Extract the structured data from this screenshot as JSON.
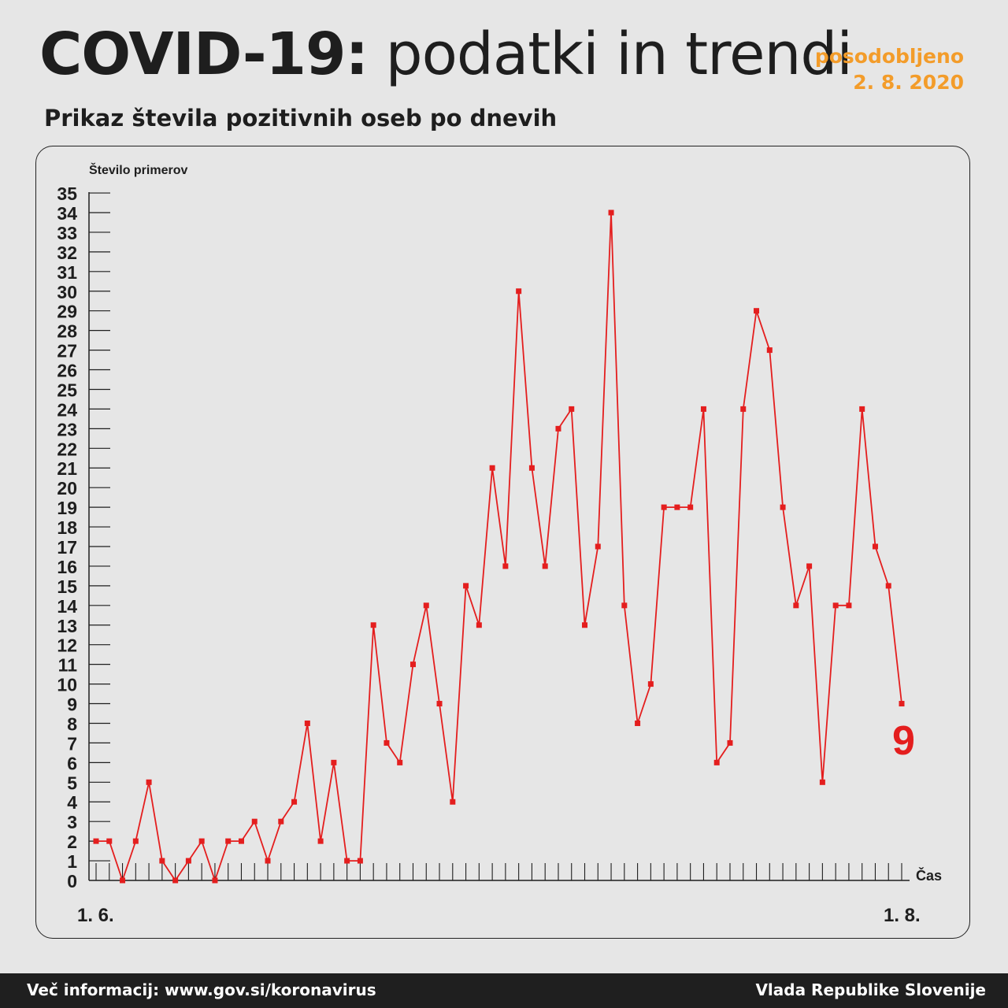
{
  "header": {
    "title_bold": "COVID-19:",
    "title_light": "podatki in trendi",
    "updated_label": "posodobljeno",
    "updated_date": "2. 8. 2020",
    "subtitle": "Prikaz števila pozitivnih oseb po dnevih"
  },
  "colors": {
    "line": "#e41e1e",
    "accent": "#f39c2a",
    "footer_bg": "#1f1f1f",
    "background": "#e6e6e6"
  },
  "chart_data": {
    "type": "line",
    "ylabel": "Število primerov",
    "xlabel": "Čas",
    "x_start_label": "1. 6.",
    "x_end_label": "1. 8.",
    "ylim": [
      0,
      35
    ],
    "yticks": [
      "0",
      "1",
      "2",
      "3",
      "4",
      "5",
      "6",
      "7",
      "8",
      "9",
      "10",
      "11",
      "12",
      "13",
      "14",
      "15",
      "16",
      "17",
      "18",
      "19",
      "20",
      "21",
      "22",
      "23",
      "24",
      "25",
      "26",
      "27",
      "28",
      "29",
      "30",
      "31",
      "32",
      "33",
      "34",
      "35"
    ],
    "values": [
      2,
      2,
      0,
      2,
      5,
      1,
      0,
      1,
      2,
      0,
      2,
      2,
      3,
      1,
      3,
      4,
      8,
      2,
      6,
      1,
      1,
      13,
      7,
      6,
      11,
      14,
      9,
      4,
      15,
      13,
      21,
      16,
      30,
      21,
      16,
      23,
      24,
      13,
      17,
      34,
      14,
      8,
      10,
      19,
      19,
      19,
      24,
      6,
      7,
      24,
      29,
      27,
      19,
      14,
      16,
      5,
      14,
      14,
      24,
      17,
      15,
      9
    ],
    "last_value_label": "9"
  },
  "footer": {
    "more_info": "Več informacij: www.gov.si/koronavirus",
    "government": "Vlada Republike Slovenije"
  }
}
